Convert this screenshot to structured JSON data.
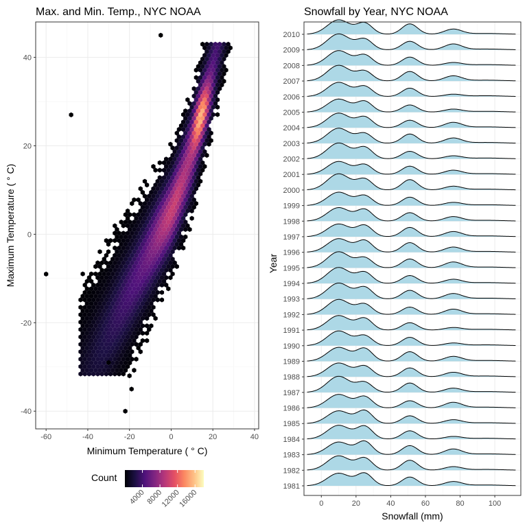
{
  "chart_data": [
    {
      "type": "hexbin",
      "title": "Max. and Min. Temp., NYC NOAA",
      "xlabel": "Minimum Temperature ( ° C)",
      "ylabel": "Maximum Temperature ( ° C)",
      "xlim": [
        -65,
        42
      ],
      "ylim": [
        -44,
        48
      ],
      "x_ticks": [
        -60,
        -40,
        -20,
        0,
        20,
        40
      ],
      "y_ticks": [
        -40,
        -20,
        0,
        20,
        40
      ],
      "grid": true,
      "colormap": "magma",
      "legend": {
        "title": "Count",
        "position": "bottom",
        "min": 0,
        "max": 18000,
        "ticks": [
          4000,
          8000,
          12000,
          16000
        ]
      },
      "density": {
        "trend": [
          [
            -30,
            -22
          ],
          [
            -10,
            -4
          ],
          [
            0,
            5
          ],
          [
            10,
            18
          ],
          [
            15,
            28
          ]
        ],
        "peak": {
          "x": 14,
          "y": 27,
          "count": 18000
        },
        "outliers": [
          [
            -60,
            -9
          ],
          [
            -48,
            27
          ],
          [
            -22,
            -40
          ],
          [
            -5,
            45
          ],
          [
            -19,
            -35
          ],
          [
            -30,
            -29
          ],
          [
            -20,
            -32
          ]
        ]
      }
    },
    {
      "type": "ridgeline",
      "title": "Snowfall by Year, NYC NOAA",
      "xlabel": "Snowfall (mm)",
      "ylabel": "Year",
      "xlim": [
        -10,
        115
      ],
      "x_ticks": [
        0,
        20,
        40,
        60,
        80,
        100
      ],
      "fill_color": "#add8e6",
      "grid": true,
      "years": [
        "1981",
        "1982",
        "1983",
        "1984",
        "1985",
        "1986",
        "1987",
        "1988",
        "1989",
        "1990",
        "1991",
        "1992",
        "1993",
        "1994",
        "1995",
        "1996",
        "1997",
        "1998",
        "1999",
        "2000",
        "2001",
        "2002",
        "2003",
        "2004",
        "2005",
        "2006",
        "2007",
        "2008",
        "2009",
        "2010"
      ],
      "modes": [
        10,
        25,
        51,
        76
      ],
      "range": [
        -8,
        112
      ]
    }
  ]
}
